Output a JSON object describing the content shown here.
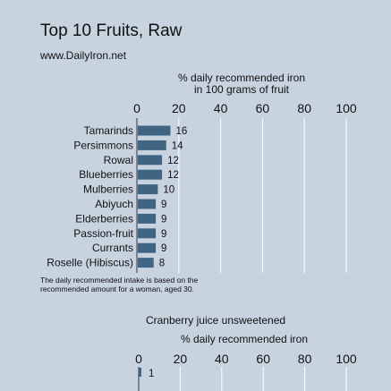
{
  "page": {
    "title": "Top 10 Fruits, Raw",
    "subtitle": "www.DailyIron.net",
    "note_lines": [
      "The daily recommended intake is based on the",
      "recommended amount for a woman, aged 30."
    ]
  },
  "colors": {
    "background": "#c8d3e0",
    "bar": "#3f6583",
    "gridline": "#ffffff",
    "axis": "#333333"
  },
  "chart_data": [
    {
      "type": "bar",
      "orientation": "horizontal",
      "title": "",
      "xlabel_lines": [
        "% daily recommended iron",
        "in 100 grams of fruit"
      ],
      "xlim": [
        0,
        100
      ],
      "xticks": [
        0,
        20,
        40,
        60,
        80,
        100
      ],
      "tick_labels": [
        "0",
        "20",
        "40",
        "60",
        "80",
        "100"
      ],
      "grid": true,
      "categories": [
        "Tamarinds",
        "Persimmons",
        "Rowal",
        "Blueberries",
        "Mulberries",
        "Abiyuch",
        "Elderberries",
        "Passion-fruit",
        "Currants",
        "Roselle (Hibiscus)"
      ],
      "values": [
        16,
        14,
        12,
        12,
        10,
        9,
        9,
        9,
        9,
        8
      ],
      "value_labels": [
        "16",
        "14",
        "12",
        "12",
        "10",
        "9",
        "9",
        "9",
        "9",
        "8"
      ]
    },
    {
      "type": "bar",
      "orientation": "horizontal",
      "title": "Cranberry juice unsweetened",
      "xlabel_lines": [
        "% daily recommended iron"
      ],
      "xlim": [
        0,
        100
      ],
      "xticks": [
        0,
        20,
        40,
        60,
        80,
        100
      ],
      "tick_labels": [
        "0",
        "20",
        "40",
        "60",
        "80",
        "100"
      ],
      "grid": true,
      "categories": [
        ""
      ],
      "values": [
        1
      ],
      "value_labels": [
        "1"
      ]
    }
  ]
}
